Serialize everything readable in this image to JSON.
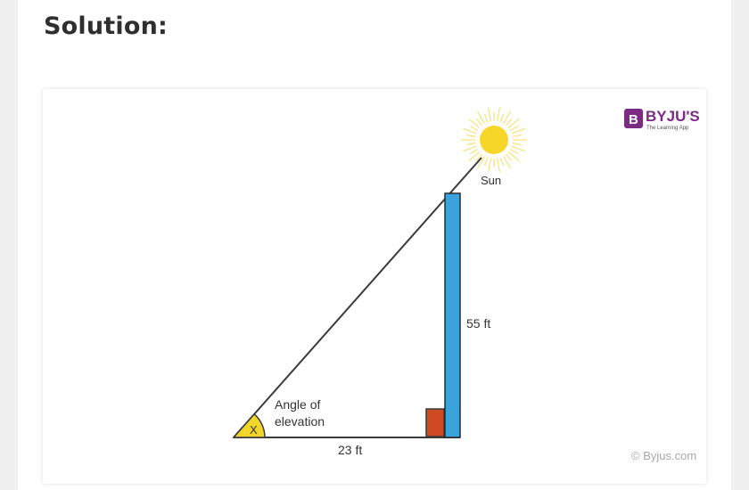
{
  "heading": "Solution:",
  "diagram": {
    "sun_label": "Sun",
    "pole_height_label": "55 ft",
    "base_label": "23 ft",
    "angle_symbol": "X",
    "angle_caption_line1": "Angle of",
    "angle_caption_line2": "elevation",
    "watermark": "© Byjus.com"
  },
  "logo": {
    "letter": "B",
    "brand": "BYJU'S",
    "tagline": "The Learning App"
  },
  "colors": {
    "pole_fill": "#3aa3dc",
    "right_angle_marker": "#cf4a22",
    "angle_marker": "#f2d52b",
    "sun": "#f7d62a",
    "brand": "#7b2b84"
  }
}
